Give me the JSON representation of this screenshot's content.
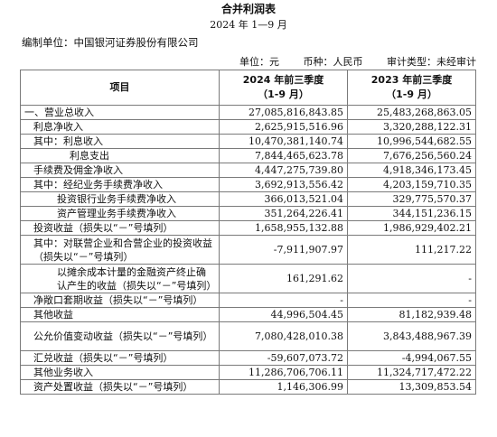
{
  "header": {
    "title": "合并利润表",
    "period": "2024 年 1—9 月",
    "compiler": "编制单位：中国银河证券股份有限公司",
    "unit": "单位：元",
    "currency": "币种：人民币",
    "audit": "审计类型：未经审计"
  },
  "table": {
    "col_item": "项目",
    "col_2024_line1": "2024 年前三季度",
    "col_2024_line2": "（1-9 月）",
    "col_2023_line1": "2023 年前三季度",
    "col_2023_line2": "（1-9 月）",
    "rows": [
      {
        "label": "一、营业总收入",
        "v2024": "27,085,816,843.85",
        "v2023": "25,483,268,863.05"
      },
      {
        "label": "利息净收入",
        "v2024": "2,625,915,516.96",
        "v2023": "3,320,288,122.31"
      },
      {
        "label": "其中：利息收入",
        "v2024": "10,470,381,140.74",
        "v2023": "10,996,544,682.55"
      },
      {
        "label": "利息支出",
        "v2024": "7,844,465,623.78",
        "v2023": "7,676,256,560.24"
      },
      {
        "label": "手续费及佣金净收入",
        "v2024": "4,447,275,739.80",
        "v2023": "4,918,346,173.45"
      },
      {
        "label": "其中：经纪业务手续费净收入",
        "v2024": "3,692,913,556.42",
        "v2023": "4,203,159,710.35"
      },
      {
        "label": "投资银行业务手续费净收入",
        "v2024": "366,013,521.04",
        "v2023": "329,775,570.37"
      },
      {
        "label": "资产管理业务手续费净收入",
        "v2024": "351,264,226.41",
        "v2023": "344,151,236.15"
      },
      {
        "label": "投资收益（损失以“－”号填列）",
        "v2024": "1,658,955,132.88",
        "v2023": "1,986,929,402.21"
      },
      {
        "label": "其中：对联营企业和合营企业的投资收益（损失以“－”号填列）",
        "v2024": "-7,911,907.97",
        "v2023": "111,217.22"
      },
      {
        "label": "以摊余成本计量的金融资产终止确认产生的收益（损失以“－”号填列）",
        "v2024": "161,291.62",
        "v2023": "-"
      },
      {
        "label": "净敞口套期收益（损失以“－”号填列）",
        "v2024": "-",
        "v2023": "-"
      },
      {
        "label": "其他收益",
        "v2024": "44,996,504.45",
        "v2023": "81,182,939.48"
      },
      {
        "label": "公允价值变动收益（损失以“－”号填列）",
        "v2024": "7,080,428,010.38",
        "v2023": "3,843,488,967.39"
      },
      {
        "label": "汇兑收益（损失以“－”号填列）",
        "v2024": "-59,607,073.72",
        "v2023": "-4,994,067.55"
      },
      {
        "label": "其他业务收入",
        "v2024": "11,286,706,706.11",
        "v2023": "11,324,717,472.22"
      },
      {
        "label": "资产处置收益（损失以“－”号填列）",
        "v2024": "1,146,306.99",
        "v2023": "13,309,853.54"
      }
    ]
  }
}
